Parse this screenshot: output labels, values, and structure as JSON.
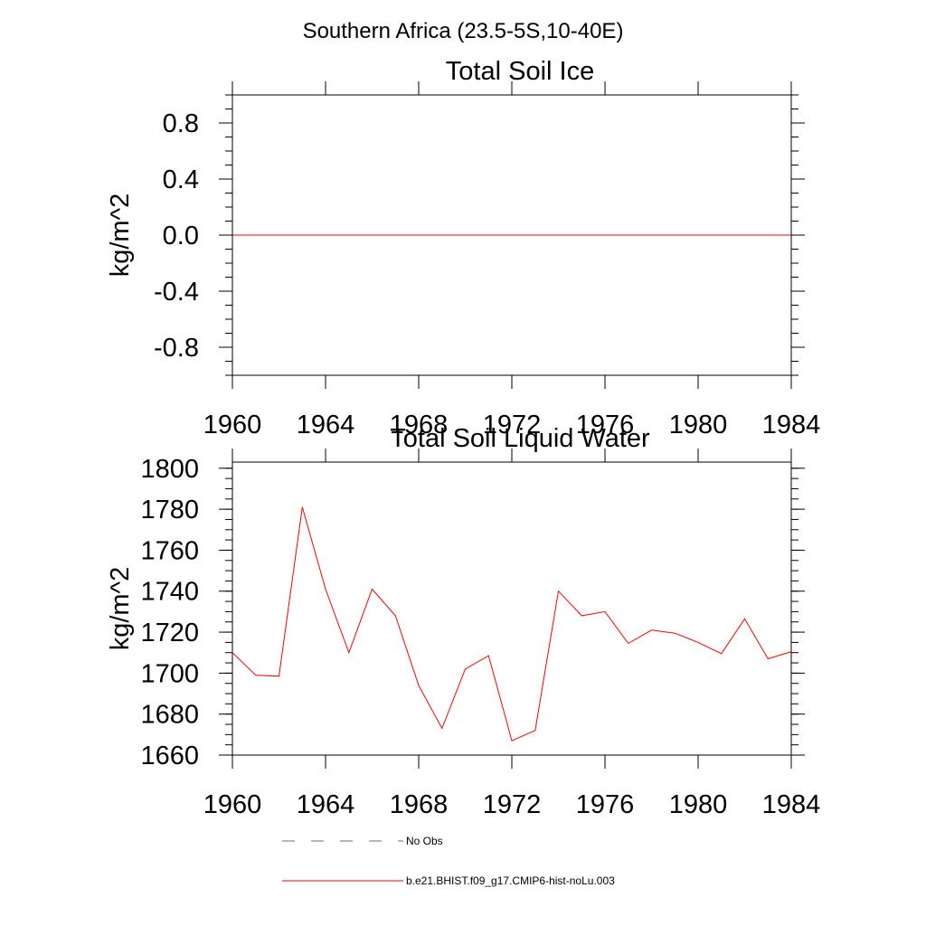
{
  "figure_title": "Southern Africa (23.5-5S,10-40E)",
  "colors": {
    "series": "#ff0000",
    "obs": "#6b6b8a",
    "axis": "#000000"
  },
  "chart_data": [
    {
      "type": "line",
      "title": "Total Soil Ice",
      "xlabel": "",
      "ylabel": "kg/m^2",
      "xlim": [
        1960,
        1984
      ],
      "ylim": [
        -1.0,
        1.0
      ],
      "x_ticks": [
        1960,
        1964,
        1968,
        1972,
        1976,
        1980,
        1984
      ],
      "y_ticks": [
        -0.8,
        -0.4,
        0.0,
        0.4,
        0.8
      ],
      "y_tick_labels": [
        "-0.8",
        "-0.4",
        "0.0",
        "0.4",
        "0.8"
      ],
      "grid": false,
      "series": [
        {
          "name": "b.e21.BHIST.f09_g17.CMIP6-hist-noLu.003",
          "x": [
            1960,
            1961,
            1962,
            1963,
            1964,
            1965,
            1966,
            1967,
            1968,
            1969,
            1970,
            1971,
            1972,
            1973,
            1974,
            1975,
            1976,
            1977,
            1978,
            1979,
            1980,
            1981,
            1982,
            1983,
            1984
          ],
          "y": [
            0,
            0,
            0,
            0,
            0,
            0,
            0,
            0,
            0,
            0,
            0,
            0,
            0,
            0,
            0,
            0,
            0,
            0,
            0,
            0,
            0,
            0,
            0,
            0,
            0
          ]
        }
      ]
    },
    {
      "type": "line",
      "title": "Total Soil Liquid Water",
      "xlabel": "",
      "ylabel": "kg/m^2",
      "xlim": [
        1960,
        1984
      ],
      "ylim": [
        1660,
        1803
      ],
      "x_ticks": [
        1960,
        1964,
        1968,
        1972,
        1976,
        1980,
        1984
      ],
      "y_ticks": [
        1660,
        1680,
        1700,
        1720,
        1740,
        1760,
        1780,
        1800
      ],
      "y_tick_labels": [
        "1660",
        "1680",
        "1700",
        "1720",
        "1740",
        "1760",
        "1780",
        "1800"
      ],
      "grid": false,
      "series": [
        {
          "name": "b.e21.BHIST.f09_g17.CMIP6-hist-noLu.003",
          "x": [
            1960,
            1961,
            1962,
            1963,
            1964,
            1965,
            1966,
            1967,
            1968,
            1969,
            1970,
            1971,
            1972,
            1973,
            1974,
            1975,
            1976,
            1977,
            1978,
            1979,
            1980,
            1981,
            1982,
            1983,
            1984
          ],
          "y": [
            1710,
            1699,
            1698.5,
            1781,
            1741,
            1710,
            1741,
            1728,
            1694,
            1673,
            1702,
            1708.5,
            1667,
            1672,
            1740,
            1728,
            1730,
            1714.5,
            1721,
            1719.5,
            1715,
            1709.5,
            1726.5,
            1707,
            1710.5
          ]
        }
      ]
    }
  ],
  "legend": {
    "placement": "bottom",
    "entries": [
      {
        "label": "No Obs",
        "style": "dashed",
        "color": "#6b6b8a"
      },
      {
        "label": "b.e21.BHIST.f09_g17.CMIP6-hist-noLu.003",
        "style": "solid",
        "color": "#ff0000"
      }
    ]
  }
}
